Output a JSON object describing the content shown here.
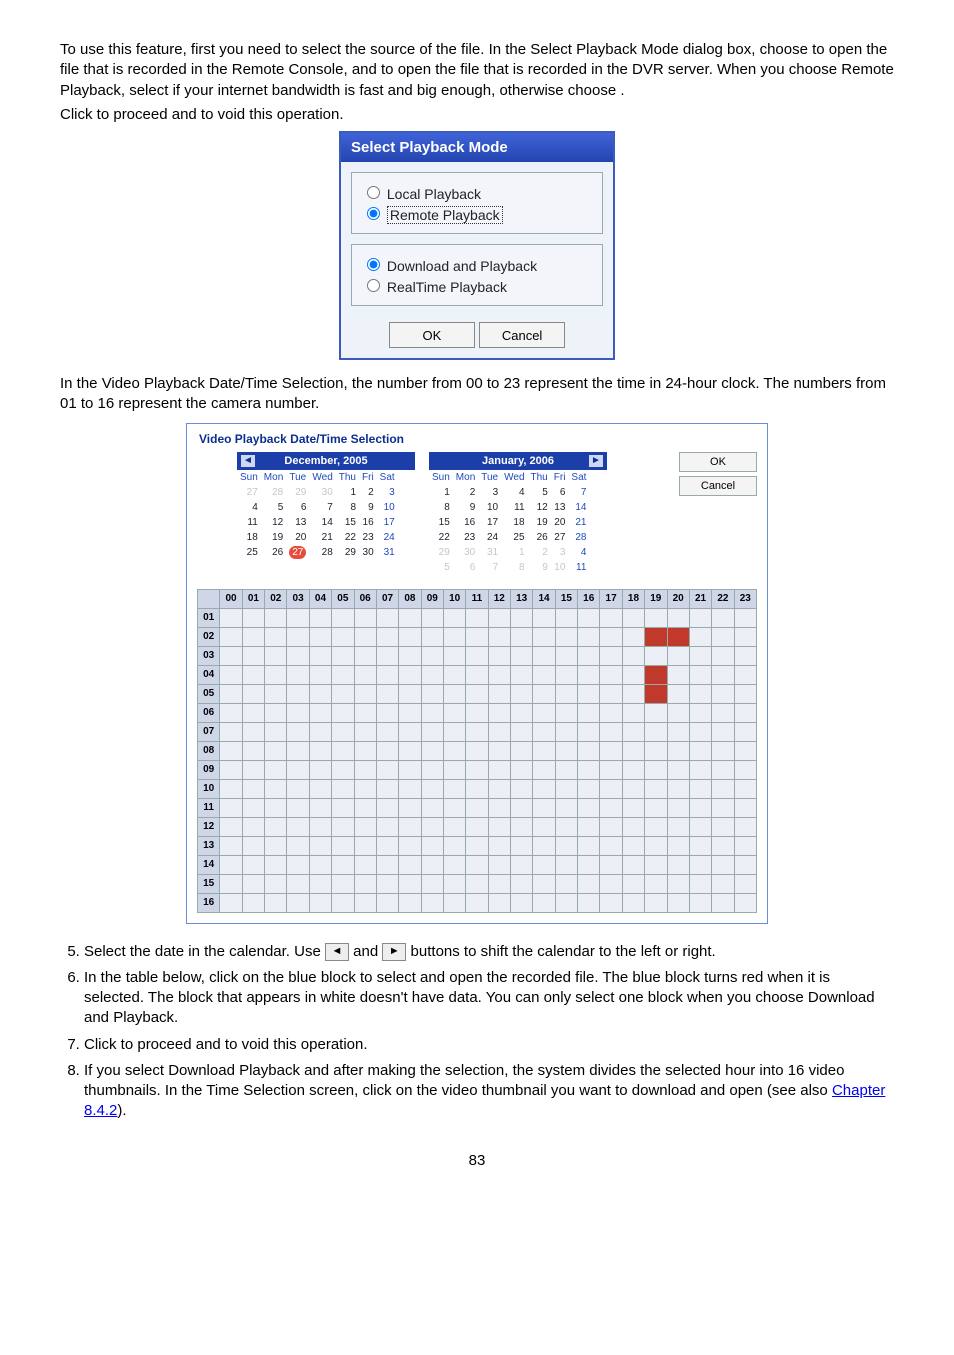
{
  "intro": {
    "p1a": "To use this feature, first you need to select the source of the file. In the Select Playback Mode dialog box, choose ",
    "p1b": " to open the file that is recorded in the Remote Console, and ",
    "p1c": " to open the file that is recorded in the DVR server. When you choose Remote Playback, select ",
    "p1d": " if your internet bandwidth is fast and big enough, otherwise choose ",
    "p1e": ".",
    "p2a": "Click ",
    "p2b": " to proceed and ",
    "p2c": " to void this operation."
  },
  "dialog": {
    "title": "Select Playback Mode",
    "opt_local": "Local Playback",
    "opt_remote": "Remote Playback",
    "opt_download": "Download and Playback",
    "opt_realtime": "RealTime Playback",
    "ok": "OK",
    "cancel": "Cancel"
  },
  "mid_para": "In the Video Playback Date/Time Selection, the number from 00 to 23 represent the time in 24-hour clock. The numbers from 01 to 16 represent the camera number.",
  "cal": {
    "window_title": "Video Playback Date/Time Selection",
    "dec_title": "December, 2005",
    "jan_title": "January, 2006",
    "dow": [
      "Sun",
      "Mon",
      "Tue",
      "Wed",
      "Thu",
      "Fri",
      "Sat"
    ],
    "dec_rows": [
      [
        "27",
        "28",
        "29",
        "30",
        "1",
        "2",
        "3"
      ],
      [
        "4",
        "5",
        "6",
        "7",
        "8",
        "9",
        "10"
      ],
      [
        "11",
        "12",
        "13",
        "14",
        "15",
        "16",
        "17"
      ],
      [
        "18",
        "19",
        "20",
        "21",
        "22",
        "23",
        "24"
      ],
      [
        "25",
        "26",
        "27",
        "28",
        "29",
        "30",
        "31"
      ]
    ],
    "dec_today": "27",
    "jan_rows": [
      [
        "1",
        "2",
        "3",
        "4",
        "5",
        "6",
        "7"
      ],
      [
        "8",
        "9",
        "10",
        "11",
        "12",
        "13",
        "14"
      ],
      [
        "15",
        "16",
        "17",
        "18",
        "19",
        "20",
        "21"
      ],
      [
        "22",
        "23",
        "24",
        "25",
        "26",
        "27",
        "28"
      ],
      [
        "29",
        "30",
        "31",
        "1",
        "2",
        "3",
        "4"
      ],
      [
        "5",
        "6",
        "7",
        "8",
        "9",
        "10",
        "11"
      ]
    ],
    "ok": "OK",
    "cancel": "Cancel",
    "hours": [
      "00",
      "01",
      "02",
      "03",
      "04",
      "05",
      "06",
      "07",
      "08",
      "09",
      "10",
      "11",
      "12",
      "13",
      "14",
      "15",
      "16",
      "17",
      "18",
      "19",
      "20",
      "21",
      "22",
      "23"
    ],
    "cams": [
      "01",
      "02",
      "03",
      "04",
      "05",
      "06",
      "07",
      "08",
      "09",
      "10",
      "11",
      "12",
      "13",
      "14",
      "15",
      "16"
    ],
    "red_cells": [
      [
        1,
        19
      ],
      [
        1,
        20
      ],
      [
        3,
        19
      ],
      [
        4,
        19
      ]
    ]
  },
  "steps": {
    "s5a": "Select the date in the calendar. Use ",
    "s5b": " and ",
    "s5c": " buttons to shift the calendar to the left or right.",
    "s6": "In the table below, click on the blue block to select and open the recorded file. The blue block turns red when it is selected. The block that appears in white doesn't have data. You can only select one block when you choose Download and Playback.",
    "s7a": "Click ",
    "s7b": " to proceed and ",
    "s7c": " to void this operation.",
    "s8a": "If you select Download Playback and after making the selection, the system divides the selected hour into 16 video thumbnails. In the Time Selection screen, click on the video thumbnail you want to download and open (see also ",
    "s8link": "Chapter 8.4.2",
    "s8b": ")."
  },
  "pagenum": "83"
}
